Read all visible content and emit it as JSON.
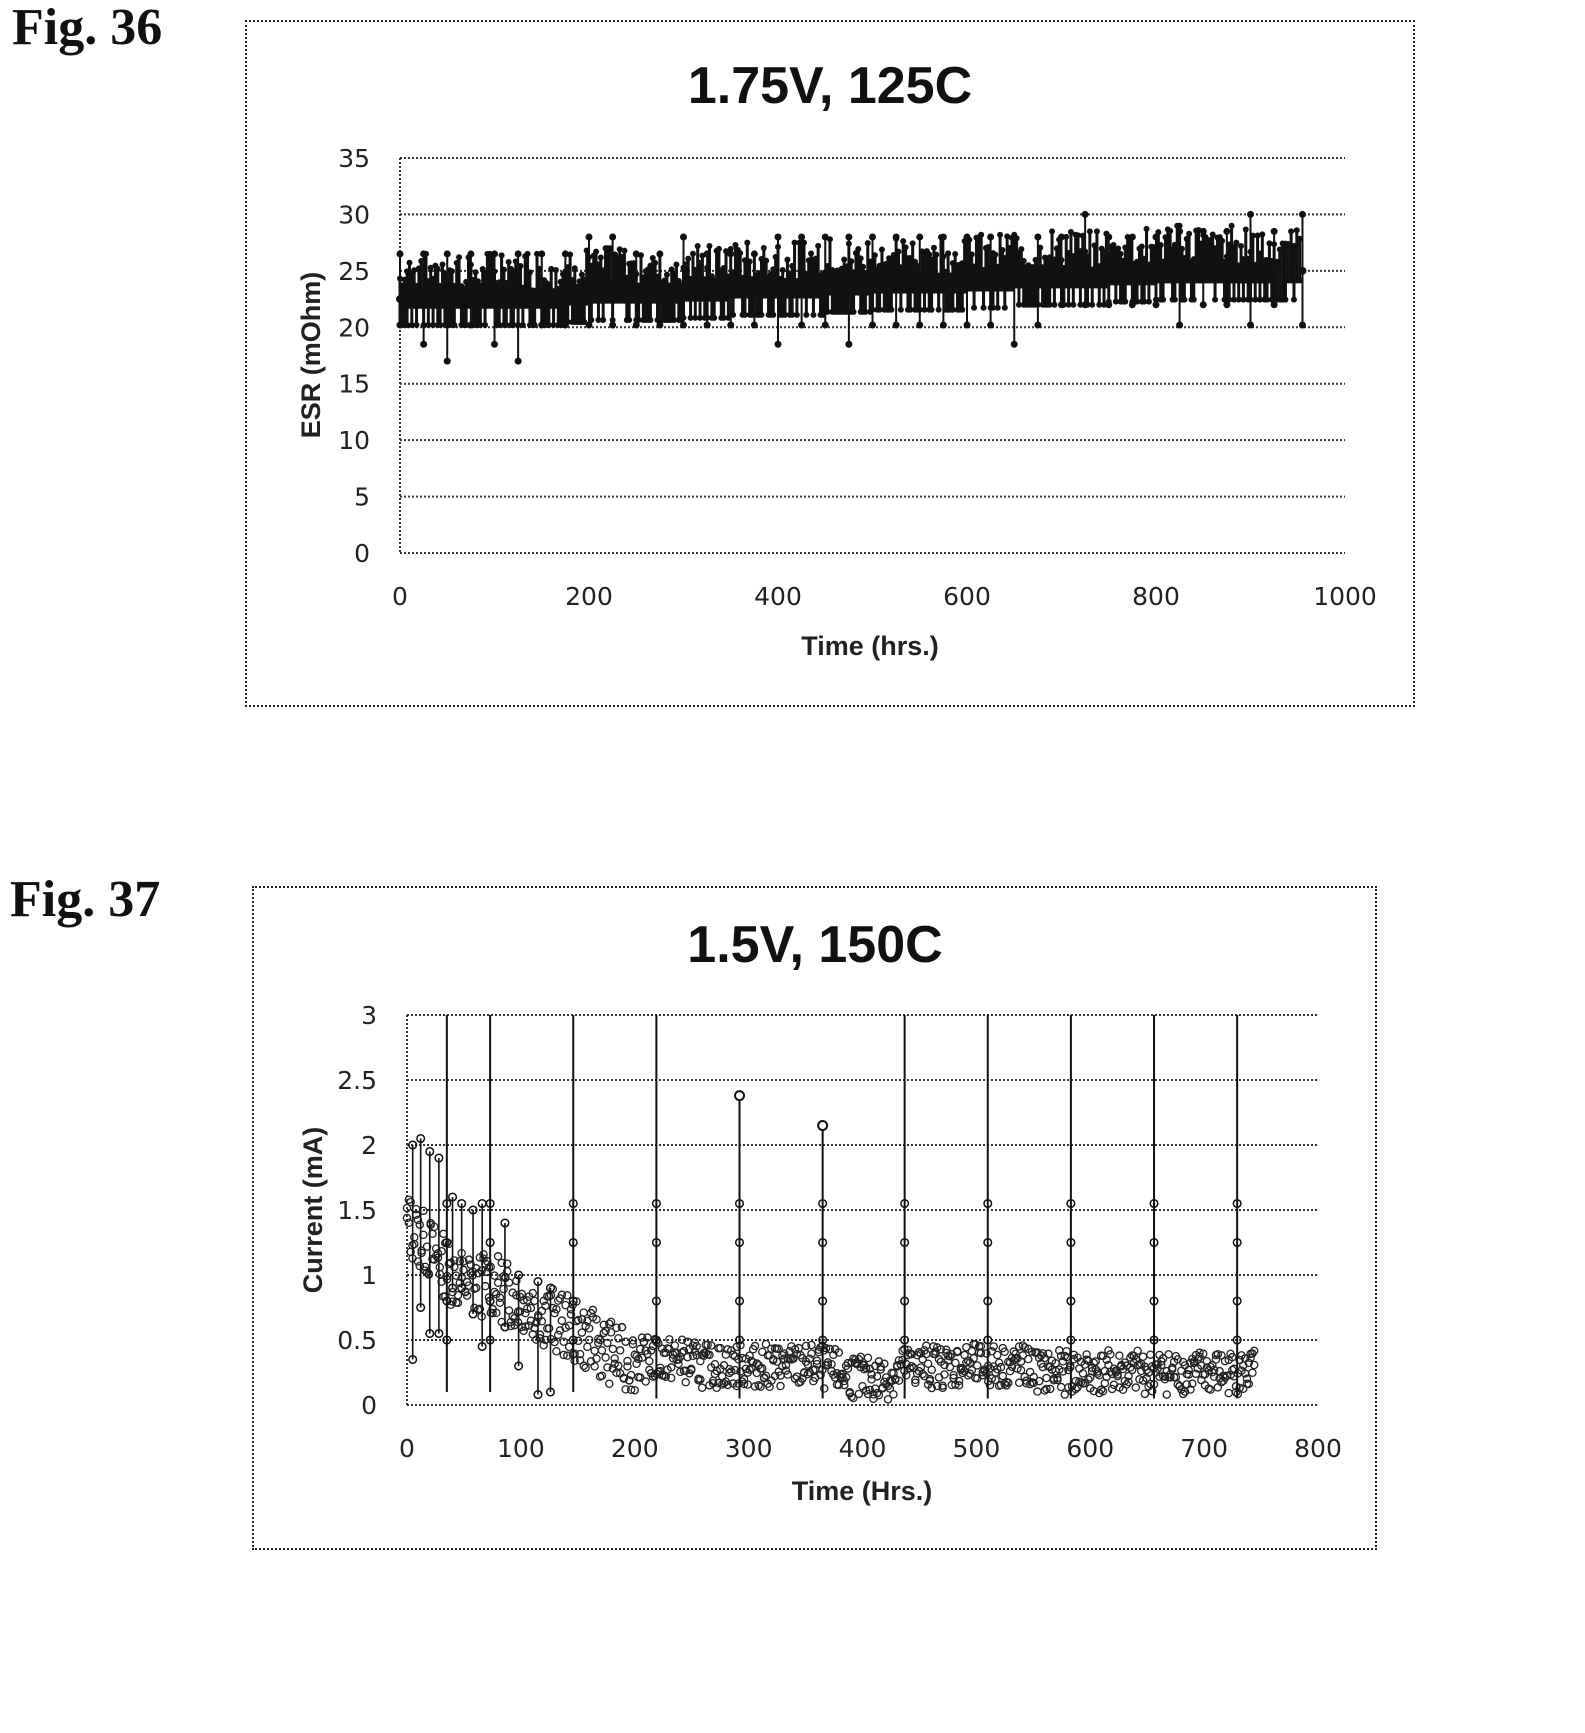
{
  "figures": [
    {
      "label": "Fig. 36"
    },
    {
      "label": "Fig. 37"
    }
  ],
  "chart_data": [
    {
      "type": "line",
      "title": "1.75V, 125C",
      "xlabel": "Time (hrs.)",
      "ylabel": "ESR (mOhm)",
      "xlim": [
        0,
        1000
      ],
      "ylim": [
        0,
        35
      ],
      "xticks": [
        0,
        200,
        400,
        600,
        800,
        1000
      ],
      "yticks": [
        0,
        5,
        10,
        15,
        20,
        25,
        30,
        35
      ],
      "grid": true,
      "legend": "none",
      "series": [
        {
          "x": [
            0,
            25,
            50,
            75,
            100,
            125,
            150,
            175,
            200,
            225,
            250,
            275,
            300,
            325,
            350,
            375,
            400,
            425,
            450,
            475,
            500,
            525,
            550,
            575,
            600,
            625,
            650,
            675,
            700,
            725,
            750,
            775,
            800,
            825,
            850,
            875,
            900,
            925,
            955
          ],
          "values": [
            22.5,
            22.5,
            22.5,
            22.5,
            22.5,
            22.5,
            22.5,
            22.8,
            23.0,
            23.0,
            23.0,
            23.0,
            23.2,
            23.2,
            23.5,
            23.5,
            23.5,
            23.5,
            23.8,
            23.8,
            24.0,
            24.0,
            24.0,
            24.0,
            24.2,
            24.2,
            24.5,
            24.5,
            24.5,
            24.5,
            24.8,
            24.8,
            25.0,
            25.0,
            25.0,
            25.0,
            25.0,
            25.0,
            25.0
          ],
          "low": [
            20.2,
            18.5,
            17.0,
            20.2,
            18.5,
            17.0,
            20.2,
            20.2,
            20.2,
            20.2,
            20.2,
            20.2,
            20.2,
            20.2,
            20.2,
            20.2,
            18.5,
            20.2,
            20.2,
            18.5,
            20.2,
            20.2,
            20.2,
            20.2,
            20.2,
            20.2,
            18.5,
            20.2,
            22.0,
            22.0,
            22.0,
            22.0,
            22.0,
            20.2,
            22.0,
            22.0,
            20.2,
            22.0,
            20.2
          ],
          "high": [
            26.5,
            26.5,
            26.5,
            26.5,
            26.5,
            26.5,
            26.5,
            26.5,
            28.0,
            28.0,
            26.5,
            26.5,
            28.0,
            26.5,
            26.5,
            26.5,
            28.0,
            28.0,
            28.0,
            28.0,
            28.0,
            28.0,
            28.0,
            28.0,
            28.0,
            28.0,
            28.0,
            28.0,
            28.0,
            30.0,
            28.0,
            28.0,
            28.0,
            28.5,
            28.5,
            28.5,
            30.0,
            28.5,
            30.0
          ]
        }
      ]
    },
    {
      "type": "line",
      "title": "1.5V, 150C",
      "xlabel": "Time (Hrs.)",
      "ylabel": "Current (mA)",
      "xlim": [
        0,
        800
      ],
      "ylim": [
        0,
        3
      ],
      "xticks": [
        0,
        100,
        200,
        300,
        400,
        500,
        600,
        700,
        800
      ],
      "yticks": [
        0,
        0.5,
        1,
        1.5,
        2,
        2.5,
        3
      ],
      "grid": true,
      "legend": "none",
      "series": [
        {
          "x": [
            0,
            10,
            20,
            30,
            40,
            50,
            60,
            70,
            80,
            90,
            100,
            110,
            120,
            130,
            140,
            150,
            160,
            170,
            180,
            190,
            200,
            220,
            240,
            260,
            280,
            300,
            320,
            340,
            360,
            380,
            400,
            420,
            440,
            460,
            480,
            500,
            520,
            540,
            560,
            580,
            600,
            620,
            640,
            660,
            680,
            700,
            720,
            745
          ],
          "values": [
            1.4,
            1.3,
            1.2,
            1.1,
            1.0,
            0.95,
            0.9,
            0.95,
            0.9,
            0.85,
            0.8,
            0.75,
            0.7,
            0.65,
            0.6,
            0.55,
            0.5,
            0.45,
            0.4,
            0.35,
            0.35,
            0.35,
            0.35,
            0.3,
            0.3,
            0.3,
            0.3,
            0.3,
            0.3,
            0.25,
            0.2,
            0.2,
            0.3,
            0.3,
            0.3,
            0.3,
            0.3,
            0.3,
            0.25,
            0.25,
            0.25,
            0.25,
            0.25,
            0.25,
            0.25,
            0.25,
            0.25,
            0.25
          ],
          "spikes": [
            {
              "x": 35,
              "y": 3.0
            },
            {
              "x": 73,
              "y": 3.0
            },
            {
              "x": 146,
              "y": 3.0
            },
            {
              "x": 219,
              "y": 3.0
            },
            {
              "x": 292,
              "y": 2.38
            },
            {
              "x": 365,
              "y": 2.15
            },
            {
              "x": 437,
              "y": 3.0
            },
            {
              "x": 510,
              "y": 3.0
            },
            {
              "x": 583,
              "y": 3.0
            },
            {
              "x": 656,
              "y": 3.0
            },
            {
              "x": 729,
              "y": 3.0
            }
          ]
        }
      ]
    }
  ]
}
